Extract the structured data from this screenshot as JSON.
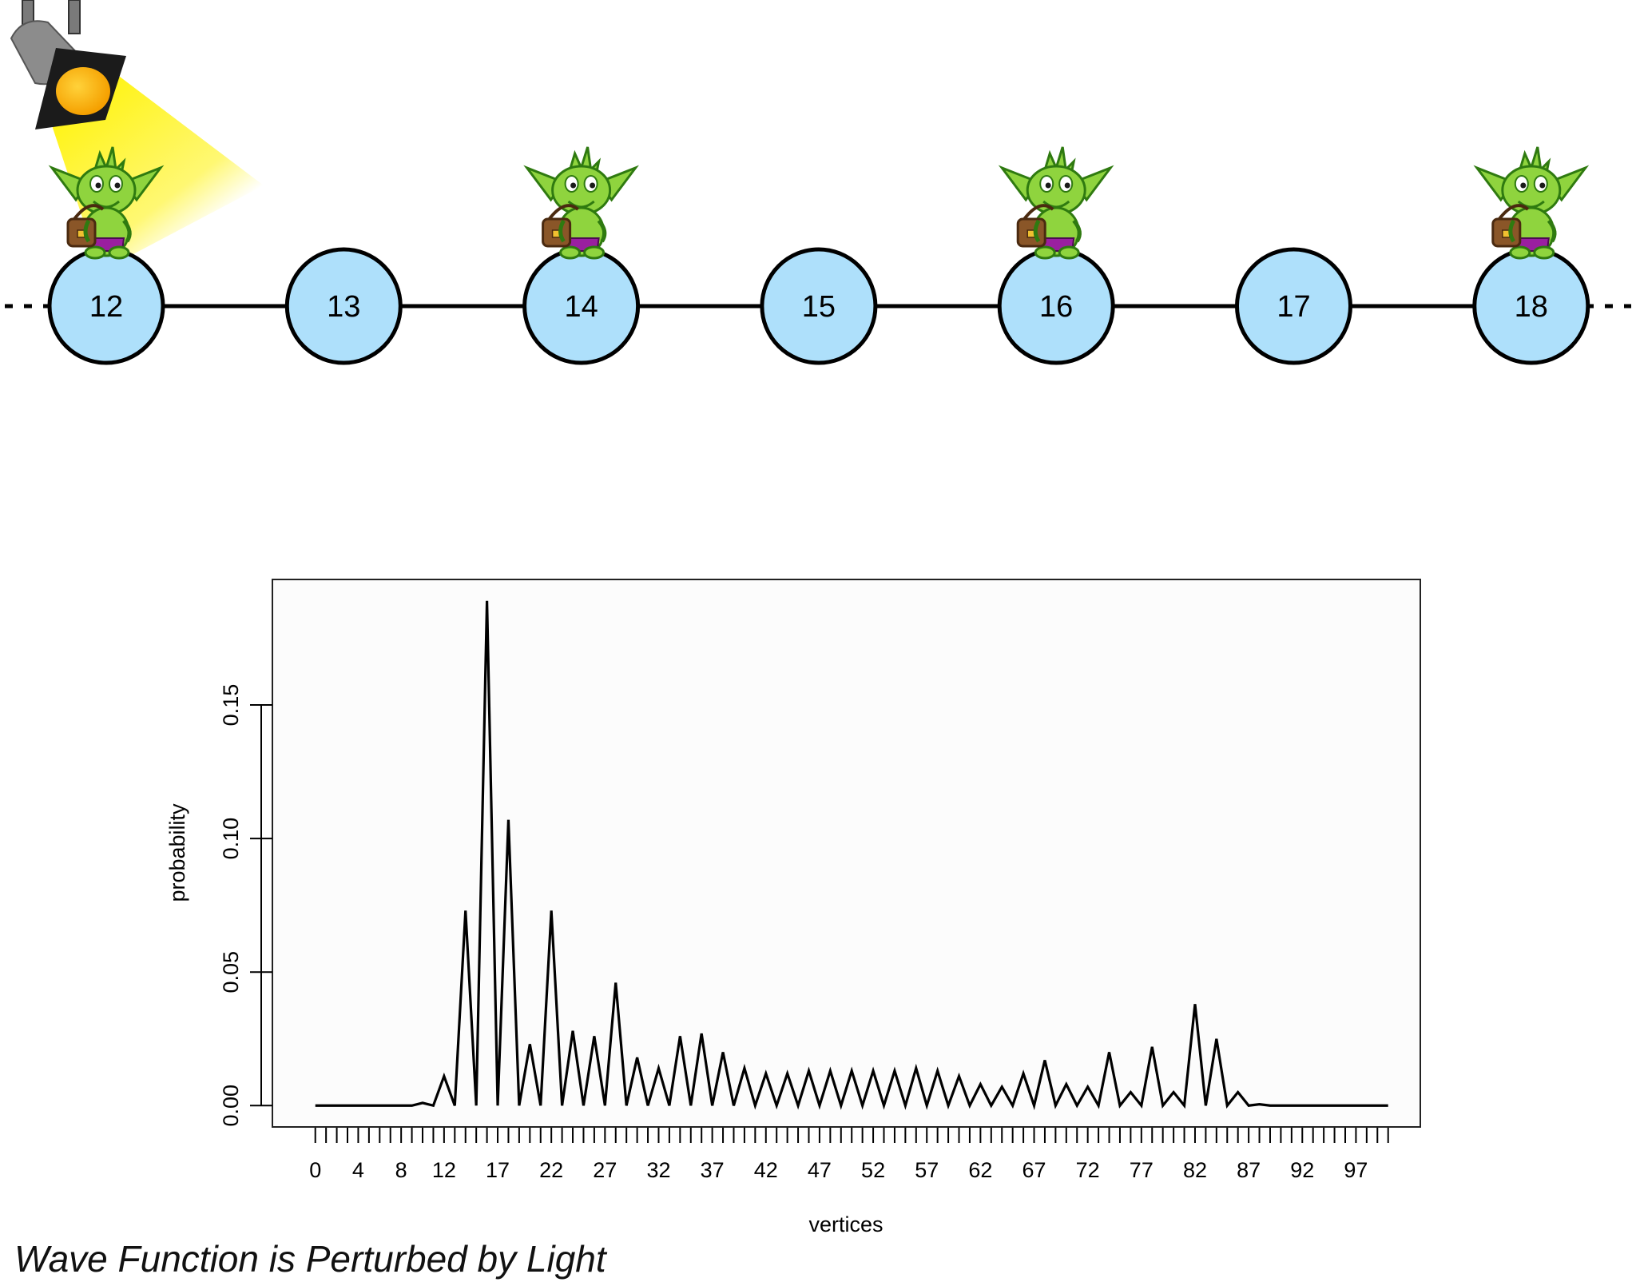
{
  "graph": {
    "vertices": [
      "12",
      "13",
      "14",
      "15",
      "16",
      "17",
      "18"
    ],
    "goblin_on": [
      "12",
      "14",
      "16",
      "18"
    ],
    "spotlight_on": "12",
    "colors": {
      "vertex_fill": "#aee0fb",
      "goblin": "#8fd43e",
      "light": "#fff200"
    }
  },
  "chart_data": {
    "type": "line",
    "xlabel": "vertices",
    "ylabel": "probability",
    "x_ticks": [
      "0",
      "4",
      "8",
      "12",
      "17",
      "22",
      "27",
      "32",
      "37",
      "42",
      "47",
      "52",
      "57",
      "62",
      "67",
      "72",
      "77",
      "82",
      "87",
      "92",
      "97"
    ],
    "y_ticks": [
      "0.00",
      "0.05",
      "0.10",
      "0.15"
    ],
    "ylim": [
      -0.008,
      0.197
    ],
    "xlim": [
      -4,
      103
    ],
    "x": [
      0,
      1,
      2,
      3,
      4,
      5,
      6,
      7,
      8,
      9,
      10,
      11,
      12,
      13,
      14,
      15,
      16,
      17,
      18,
      19,
      20,
      21,
      22,
      23,
      24,
      25,
      26,
      27,
      28,
      29,
      30,
      31,
      32,
      33,
      34,
      35,
      36,
      37,
      38,
      39,
      40,
      41,
      42,
      43,
      44,
      45,
      46,
      47,
      48,
      49,
      50,
      51,
      52,
      53,
      54,
      55,
      56,
      57,
      58,
      59,
      60,
      61,
      62,
      63,
      64,
      65,
      66,
      67,
      68,
      69,
      70,
      71,
      72,
      73,
      74,
      75,
      76,
      77,
      78,
      79,
      80,
      81,
      82,
      83,
      84,
      85,
      86,
      87,
      88,
      89,
      90,
      91,
      92,
      93,
      94,
      95,
      96,
      97,
      98,
      99,
      100
    ],
    "values": [
      0,
      0,
      0,
      0,
      0,
      0,
      0,
      0,
      0,
      0,
      0.001,
      0,
      0.011,
      0,
      0.073,
      0,
      0.189,
      0,
      0.107,
      0,
      0.023,
      0,
      0.073,
      0,
      0.028,
      0,
      0.026,
      0,
      0.046,
      0,
      0.018,
      0,
      0.014,
      0,
      0.026,
      0,
      0.027,
      0,
      0.02,
      0,
      0.014,
      0,
      0.012,
      0,
      0.012,
      0,
      0.013,
      0,
      0.013,
      0,
      0.013,
      0,
      0.013,
      0,
      0.013,
      0,
      0.014,
      0,
      0.013,
      0,
      0.011,
      0,
      0.008,
      0,
      0.007,
      0,
      0.012,
      0,
      0.017,
      0,
      0.008,
      0,
      0.007,
      0,
      0.02,
      0,
      0.005,
      0,
      0.022,
      0,
      0.005,
      0,
      0.038,
      0,
      0.025,
      0,
      0.005,
      0,
      0.0005,
      0,
      0,
      0,
      0,
      0,
      0,
      0,
      0,
      0,
      0,
      0,
      0
    ]
  },
  "caption": "Wave Function is Perturbed by Light"
}
